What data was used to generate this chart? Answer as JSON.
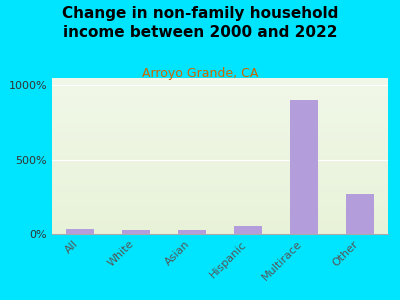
{
  "title": "Change in non-family household\nincome between 2000 and 2022",
  "subtitle": "Arroyo Grande, CA",
  "categories": [
    "All",
    "White",
    "Asian",
    "Hispanic",
    "Multirace",
    "Other"
  ],
  "values": [
    35,
    28,
    28,
    55,
    900,
    270
  ],
  "bar_color": "#b39ddb",
  "title_fontsize": 11,
  "subtitle_fontsize": 9,
  "subtitle_color": "#cc6600",
  "title_color": "#000000",
  "bg_outer": "#00e5ff",
  "bg_plot_top": "#f0f7e8",
  "bg_plot_bottom": "#e8f2d8",
  "ylabel_ticks": [
    "0%",
    "500%",
    "1000%"
  ],
  "yticks": [
    0,
    500,
    1000
  ],
  "ylim": [
    0,
    1050
  ],
  "tick_label_fontsize": 8,
  "xlabel_fontsize": 8
}
